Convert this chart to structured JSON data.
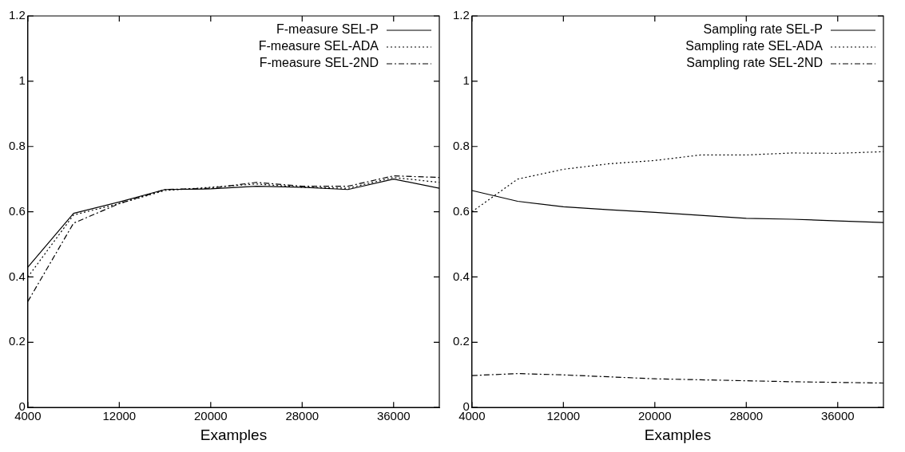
{
  "chart_data": [
    {
      "type": "line",
      "xlabel": "Examples",
      "xlim": [
        4000,
        40000
      ],
      "xticks": [
        4000,
        12000,
        20000,
        28000,
        36000
      ],
      "ylim": [
        0,
        1.2
      ],
      "yticks": [
        0,
        0.2,
        0.4,
        0.6,
        0.8,
        1,
        1.2
      ],
      "grid": false,
      "legend": "top right",
      "marker": "none",
      "x": [
        4000,
        8000,
        12000,
        16000,
        20000,
        24000,
        28000,
        32000,
        36000,
        40000
      ],
      "series": [
        {
          "name": "F-measure SEL-P",
          "color": "#000000",
          "line_style": "solid",
          "values": [
            0.43,
            0.595,
            0.63,
            0.668,
            0.67,
            0.678,
            0.675,
            0.668,
            0.7,
            0.672
          ]
        },
        {
          "name": "F-measure SEL-ADA",
          "color": "#000000",
          "line_style": "dotted",
          "values": [
            0.4,
            0.59,
            0.625,
            0.665,
            0.675,
            0.685,
            0.675,
            0.672,
            0.705,
            0.69
          ]
        },
        {
          "name": "F-measure SEL-2ND",
          "color": "#000000",
          "line_style": "dashed",
          "values": [
            0.325,
            0.565,
            0.625,
            0.668,
            0.672,
            0.69,
            0.678,
            0.678,
            0.71,
            0.705
          ]
        }
      ]
    },
    {
      "type": "line",
      "xlabel": "Examples",
      "xlim": [
        4000,
        40000
      ],
      "xticks": [
        4000,
        12000,
        20000,
        28000,
        36000
      ],
      "ylim": [
        0,
        1.2
      ],
      "yticks": [
        0,
        0.2,
        0.4,
        0.6,
        0.8,
        1,
        1.2
      ],
      "grid": false,
      "legend": "top right",
      "marker": "none",
      "x": [
        4000,
        8000,
        12000,
        16000,
        20000,
        24000,
        28000,
        32000,
        36000,
        40000
      ],
      "series": [
        {
          "name": "Sampling rate SEL-P",
          "color": "#000000",
          "line_style": "solid",
          "values": [
            0.665,
            0.632,
            0.615,
            0.606,
            0.598,
            0.589,
            0.58,
            0.577,
            0.572,
            0.567
          ]
        },
        {
          "name": "Sampling rate SEL-ADA",
          "color": "#000000",
          "line_style": "dotted",
          "values": [
            0.6,
            0.7,
            0.73,
            0.747,
            0.757,
            0.774,
            0.774,
            0.78,
            0.779,
            0.784
          ]
        },
        {
          "name": "Sampling rate SEL-2ND",
          "color": "#000000",
          "line_style": "dashed",
          "values": [
            0.098,
            0.104,
            0.1,
            0.094,
            0.088,
            0.085,
            0.082,
            0.079,
            0.077,
            0.075
          ]
        }
      ]
    }
  ]
}
